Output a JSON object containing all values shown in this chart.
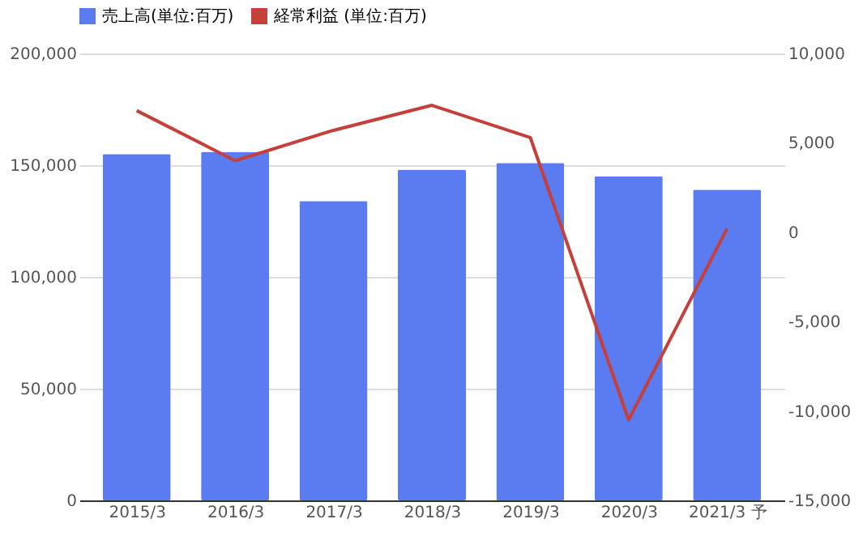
{
  "chart_data": {
    "type": "bar",
    "categories": [
      "2015/3",
      "2016/3",
      "2017/3",
      "2018/3",
      "2019/3",
      "2020/3",
      "2021/3 予"
    ],
    "series": [
      {
        "name": "売上高(単位:百万)",
        "color": "#5b7bf0",
        "values": [
          155000,
          156000,
          134000,
          148000,
          151000,
          145000,
          139000
        ]
      },
      {
        "name": "経常利益 (単位:百万)",
        "type": "line",
        "axis": "y2",
        "color": "#c5403a",
        "values": [
          6800,
          4000,
          5700,
          7100,
          5300,
          -10500,
          200
        ]
      }
    ],
    "ylim": [
      0,
      200000
    ],
    "yticks": [
      0,
      {
        "value": 50000,
        "label": "50,000"
      },
      {
        "value": 100000,
        "label": "100,000"
      },
      {
        "value": 150000,
        "label": "150,000"
      },
      {
        "value": 200000,
        "label": "200,000"
      }
    ],
    "y2lim": [
      -15000,
      10000
    ],
    "y2ticks": [
      {
        "value": -15000,
        "label": "-15,000"
      },
      {
        "value": -10000,
        "label": "-10,000"
      },
      {
        "value": -5000,
        "label": "-5,000"
      },
      0,
      {
        "value": 5000,
        "label": "5,000"
      },
      {
        "value": 10000,
        "label": "10,000"
      }
    ],
    "grid": "y",
    "legend": "top",
    "marker": "none",
    "line_style": "solid"
  }
}
